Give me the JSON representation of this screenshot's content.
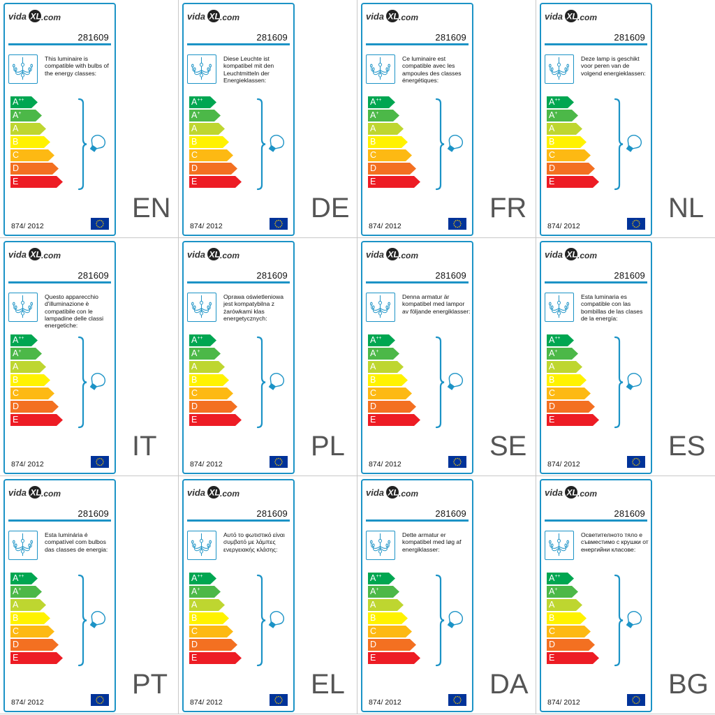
{
  "brand": "vidaXL.com",
  "product_code": "281609",
  "regulation": "874/ 2012",
  "energy_classes": [
    {
      "letter": "A",
      "sup": "++",
      "color": "#00a651"
    },
    {
      "letter": "A",
      "sup": "+",
      "color": "#4cb848"
    },
    {
      "letter": "A",
      "sup": "",
      "color": "#bed630"
    },
    {
      "letter": "B",
      "sup": "",
      "color": "#fff200"
    },
    {
      "letter": "C",
      "sup": "",
      "color": "#fdb913"
    },
    {
      "letter": "D",
      "sup": "",
      "color": "#f37021"
    },
    {
      "letter": "E",
      "sup": "",
      "color": "#ed1c24"
    }
  ],
  "colors": {
    "accent": "#1c93c6",
    "eu_blue": "#003399",
    "eu_star": "#ffcc00",
    "lang_code": "#555555"
  },
  "icons": [
    "chandelier-icon",
    "bulb-icon",
    "eu-flag-icon",
    "bracket-icon"
  ],
  "labels": [
    {
      "lang": "EN",
      "text": "This luminaire is compatible with bulbs of the energy classes:"
    },
    {
      "lang": "DE",
      "text": "Diese Leuchte ist kompatibel mit den Leuchtmitteln der Energieklassen:"
    },
    {
      "lang": "FR",
      "text": "Ce luminaire est compatible avec les ampoules des classes énergétiques:"
    },
    {
      "lang": "NL",
      "text": "Deze lamp is geschikt voor peren van de volgend energieklassen:"
    },
    {
      "lang": "IT",
      "text": "Questo apparecchio d'illuminazione è compatibile con le lampadine delle classi energetiche:"
    },
    {
      "lang": "PL",
      "text": "Oprawa oświetleniowa jest kompatybilna z żarówkami klas energetycznych:"
    },
    {
      "lang": "SE",
      "text": "Denna armatur är kompatibel med lampor av följande energiklasser:"
    },
    {
      "lang": "ES",
      "text": "Esta luminaria es compatible con las bombillas de las clases de la energía:"
    },
    {
      "lang": "PT",
      "text": "Esta luminária é compatível com bulbos das classes de energia:"
    },
    {
      "lang": "EL",
      "text": "Αυτό το φωτιστικό είναι συμβατό με λάμπες ενεργειακής κλάσης:"
    },
    {
      "lang": "DA",
      "text": "Dette armatur er kompatibel med løg af energiklasser:"
    },
    {
      "lang": "BG",
      "text": "Осветителното тяло е съвместимо с крушки от енергийни класове:"
    }
  ]
}
